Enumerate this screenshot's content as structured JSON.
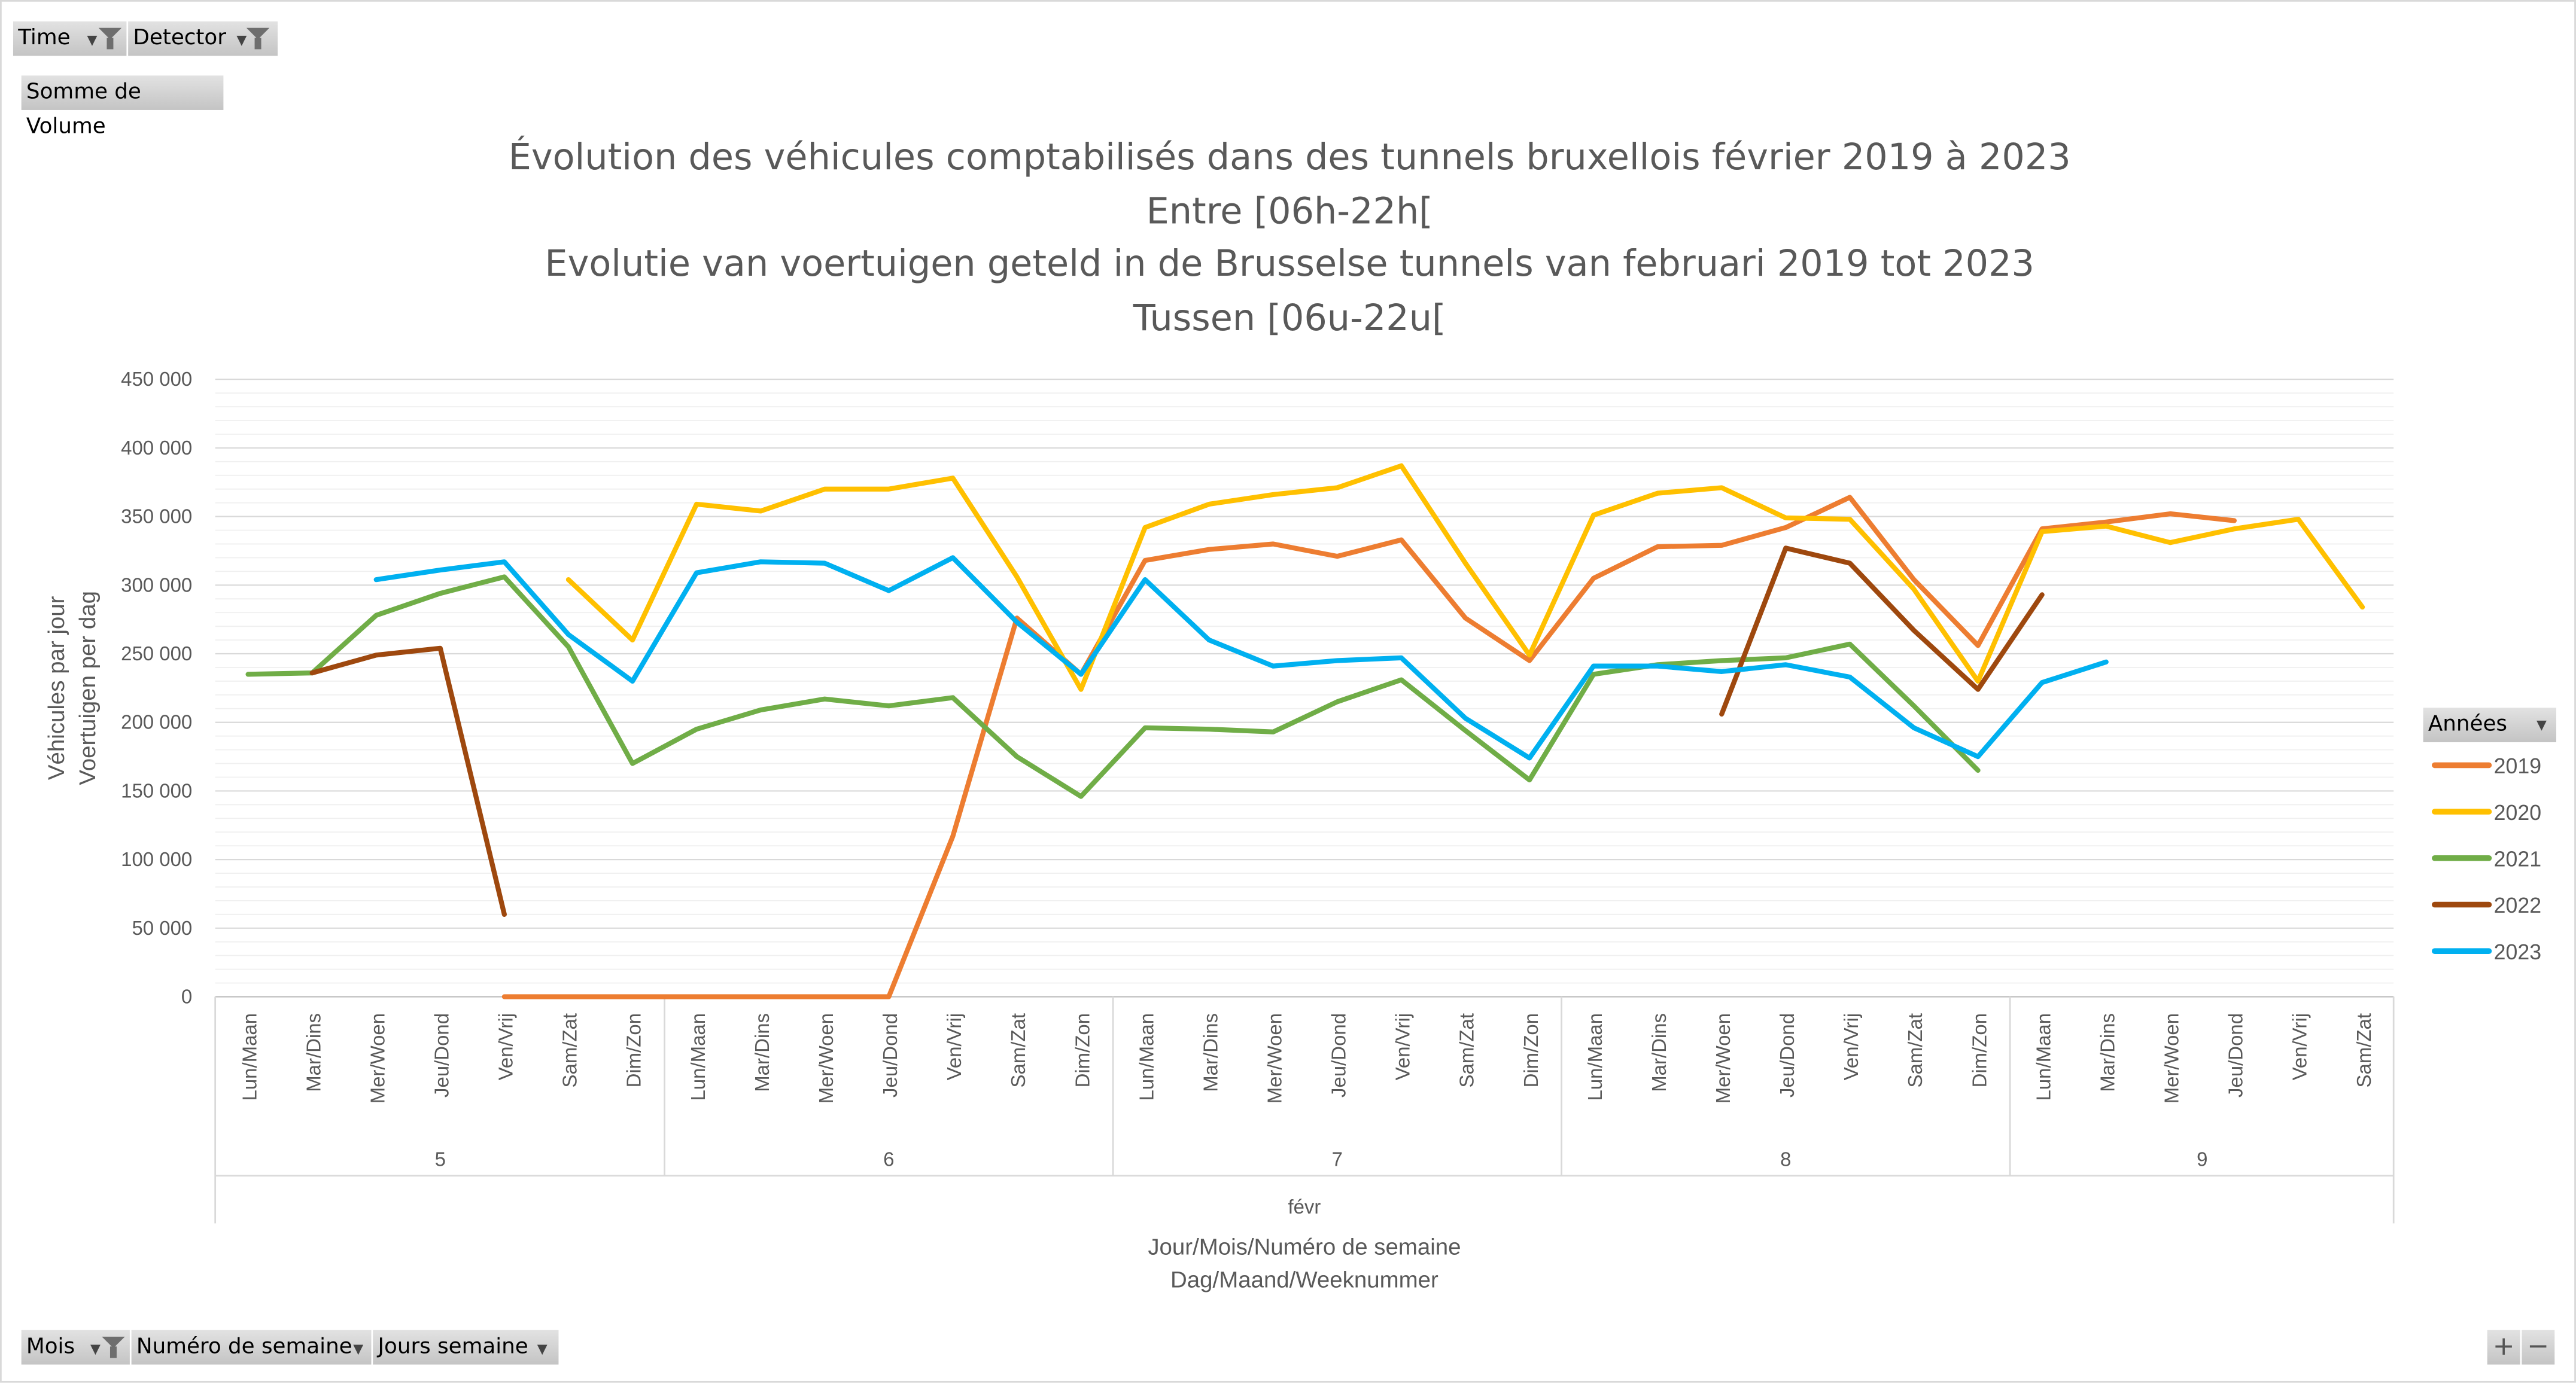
{
  "filters_top": [
    {
      "label": "Time",
      "icon": "funnel-icon"
    },
    {
      "label": "Detector",
      "icon": "funnel-icon"
    }
  ],
  "value_field": "Somme de Volume",
  "filters_bottom": [
    {
      "label": "Mois",
      "icon": "funnel-icon"
    },
    {
      "label": "Numéro de semaine",
      "icon": "dropdown-icon"
    },
    {
      "label": "Jours semaine",
      "icon": "dropdown-icon"
    }
  ],
  "zoom_buttons": {
    "plus": "+",
    "minus": "−"
  },
  "legend_title": "Années",
  "chart_data": {
    "type": "line",
    "title": [
      "Évolution des véhicules comptabilisés dans des tunnels bruxellois février 2019 à 2023",
      "Entre [06h-22h[",
      "Evolutie van voertuigen geteld in de Brusselse tunnels van februari 2019 tot 2023",
      "Tussen [06u-22u["
    ],
    "ylabel": [
      "Véhicules par jour",
      "Voertuigen per dag"
    ],
    "xlabel": [
      "Jour/Mois/Numéro de semaine",
      "Dag/Maand/Weeknummer"
    ],
    "month": "févr",
    "ylim": [
      0,
      450000
    ],
    "yticks": [
      "0",
      "50 000",
      "100 000",
      "150 000",
      "200 000",
      "250 000",
      "300 000",
      "350 000",
      "400 000",
      "450 000"
    ],
    "grid": true,
    "legend_position": "right",
    "weeks": [
      {
        "label": "5",
        "days": 7
      },
      {
        "label": "6",
        "days": 7
      },
      {
        "label": "7",
        "days": 7
      },
      {
        "label": "8",
        "days": 7
      },
      {
        "label": "9",
        "days": 6
      }
    ],
    "categories": [
      "Lun/Maan",
      "Mar/Dins",
      "Mer/Woen",
      "Jeu/Dond",
      "Ven/Vrij",
      "Sam/Zat",
      "Dim/Zon",
      "Lun/Maan",
      "Mar/Dins",
      "Mer/Woen",
      "Jeu/Dond",
      "Ven/Vrij",
      "Sam/Zat",
      "Dim/Zon",
      "Lun/Maan",
      "Mar/Dins",
      "Mer/Woen",
      "Jeu/Dond",
      "Ven/Vrij",
      "Sam/Zat",
      "Dim/Zon",
      "Lun/Maan",
      "Mar/Dins",
      "Mer/Woen",
      "Jeu/Dond",
      "Ven/Vrij",
      "Sam/Zat",
      "Dim/Zon",
      "Lun/Maan",
      "Mar/Dins",
      "Mer/Woen",
      "Jeu/Dond",
      "Ven/Vrij",
      "Sam/Zat"
    ],
    "series": [
      {
        "name": "2019",
        "color": "#ED7D31",
        "values": [
          null,
          null,
          null,
          null,
          0,
          0,
          0,
          0,
          0,
          0,
          0,
          117000,
          276000,
          235000,
          318000,
          326000,
          330000,
          321000,
          333000,
          276000,
          245000,
          305000,
          328000,
          329000,
          342000,
          364000,
          304000,
          256000,
          341000,
          346000,
          352000,
          347000,
          null,
          null
        ]
      },
      {
        "name": "2020",
        "color": "#FFC000",
        "values": [
          null,
          null,
          null,
          null,
          null,
          304000,
          260000,
          359000,
          354000,
          370000,
          370000,
          378000,
          306000,
          224000,
          342000,
          359000,
          366000,
          371000,
          387000,
          316000,
          249000,
          351000,
          367000,
          371000,
          349000,
          348000,
          297000,
          230000,
          339000,
          343000,
          331000,
          341000,
          348000,
          284000
        ]
      },
      {
        "name": "2021",
        "color": "#70AD47",
        "values": [
          235000,
          236000,
          278000,
          294000,
          306000,
          255000,
          170000,
          195000,
          209000,
          217000,
          212000,
          218000,
          175000,
          146000,
          196000,
          195000,
          193000,
          215000,
          231000,
          194000,
          158000,
          235000,
          242000,
          245000,
          247000,
          257000,
          212000,
          165000,
          null,
          null,
          null,
          null,
          null,
          null
        ]
      },
      {
        "name": "2022",
        "color": "#9E480E",
        "values": [
          null,
          236000,
          249000,
          254000,
          60000,
          null,
          null,
          null,
          null,
          null,
          null,
          null,
          null,
          null,
          null,
          null,
          null,
          null,
          null,
          null,
          null,
          null,
          null,
          206000,
          327000,
          316000,
          267000,
          224000,
          293000,
          null,
          null,
          null,
          null,
          null
        ]
      },
      {
        "name": "2023",
        "color": "#00B0F0",
        "values": [
          null,
          null,
          304000,
          311000,
          317000,
          264000,
          230000,
          309000,
          317000,
          316000,
          296000,
          320000,
          273000,
          235000,
          304000,
          260000,
          241000,
          245000,
          247000,
          203000,
          174000,
          241000,
          241000,
          237000,
          242000,
          233000,
          196000,
          175000,
          229000,
          244000,
          null,
          null,
          null,
          null
        ]
      }
    ]
  }
}
